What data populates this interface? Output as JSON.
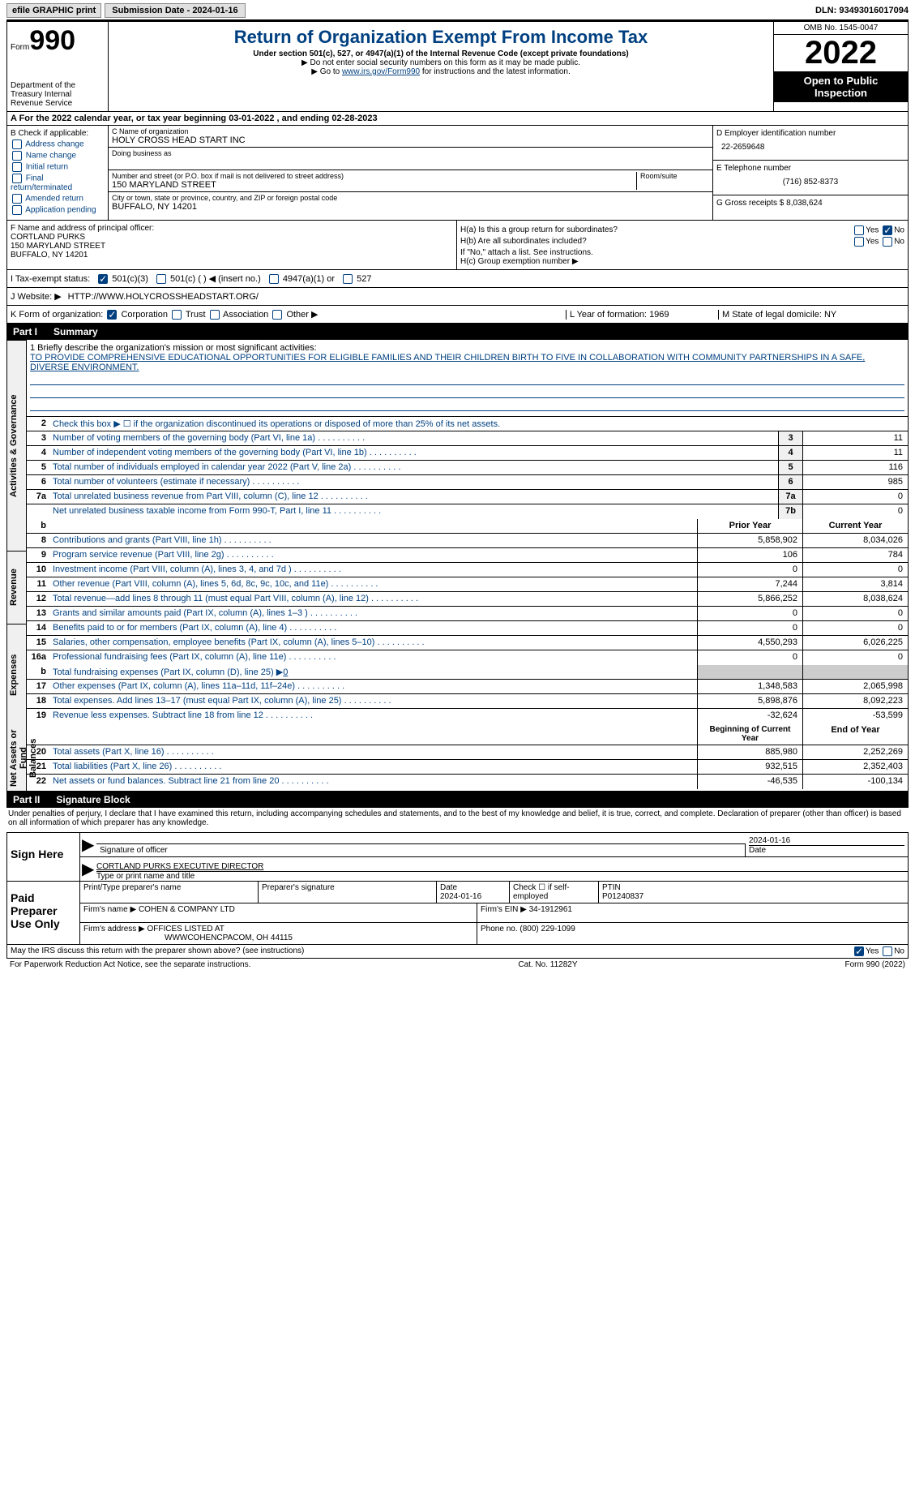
{
  "topbar": {
    "efile_label": "efile GRAPHIC print",
    "submission_label": "Submission Date - 2024-01-16",
    "dln": "DLN: 93493016017094"
  },
  "header": {
    "form_prefix": "Form",
    "form_number": "990",
    "dept": "Department of the Treasury Internal Revenue Service",
    "title": "Return of Organization Exempt From Income Tax",
    "subtitle": "Under section 501(c), 527, or 4947(a)(1) of the Internal Revenue Code (except private foundations)",
    "note1": "▶ Do not enter social security numbers on this form as it may be made public.",
    "note2_pre": "▶ Go to ",
    "note2_link": "www.irs.gov/Form990",
    "note2_post": " for instructions and the latest information.",
    "omb": "OMB No. 1545-0047",
    "year": "2022",
    "public_inspect": "Open to Public Inspection"
  },
  "row_a": {
    "text": "A For the 2022 calendar year, or tax year beginning 03-01-2022   , and ending 02-28-2023"
  },
  "col_b": {
    "label": "B Check if applicable:",
    "items": [
      "Address change",
      "Name change",
      "Initial return",
      "Final return/terminated",
      "Amended return",
      "Application pending"
    ]
  },
  "col_c": {
    "name_lbl": "C Name of organization",
    "name": "HOLY CROSS HEAD START INC",
    "dba_lbl": "Doing business as",
    "dba": "",
    "addr_lbl": "Number and street (or P.O. box if mail is not delivered to street address)",
    "addr": "150 MARYLAND STREET",
    "room_lbl": "Room/suite",
    "city_lbl": "City or town, state or province, country, and ZIP or foreign postal code",
    "city": "BUFFALO, NY  14201"
  },
  "col_d": {
    "ein_lbl": "D Employer identification number",
    "ein": "22-2659648",
    "phone_lbl": "E Telephone number",
    "phone": "(716) 852-8373",
    "gross_lbl": "G Gross receipts $",
    "gross": "8,038,624"
  },
  "fgh": {
    "f_lbl": "F Name and address of principal officer:",
    "f_name": "CORTLAND PURKS",
    "f_addr1": "150 MARYLAND STREET",
    "f_addr2": "BUFFALO, NY  14201",
    "ha_lbl": "H(a)  Is this a group return for subordinates?",
    "hb_lbl": "H(b)  Are all subordinates included?",
    "hb_note": "If \"No,\" attach a list. See instructions.",
    "hc_lbl": "H(c)  Group exemption number ▶",
    "yes": "Yes",
    "no": "No"
  },
  "status": {
    "i_lbl": "I    Tax-exempt status:",
    "opt1": "501(c)(3)",
    "opt2": "501(c) (  ) ◀ (insert no.)",
    "opt3": "4947(a)(1) or",
    "opt4": "527"
  },
  "web": {
    "j_lbl": "J   Website: ▶",
    "url": "HTTP://WWW.HOLYCROSSHEADSTART.ORG/"
  },
  "k_row": {
    "k_lbl": "K Form of organization:",
    "opts": [
      "Corporation",
      "Trust",
      "Association",
      "Other ▶"
    ],
    "l_lbl": "L Year of formation:",
    "l_val": "1969",
    "m_lbl": "M State of legal domicile:",
    "m_val": "NY"
  },
  "parts": {
    "p1": "Part I",
    "p1_title": "Summary",
    "p2": "Part II",
    "p2_title": "Signature Block"
  },
  "vtabs": [
    "Activities & Governance",
    "Revenue",
    "Expenses",
    "Net Assets or Fund Balances"
  ],
  "summary": {
    "l1_lbl": "1   Briefly describe the organization's mission or most significant activities:",
    "l1_txt": "TO PROVIDE COMPREHENSIVE EDUCATIONAL OPPORTUNITIES FOR ELIGIBLE FAMILIES AND THEIR CHILDREN BIRTH TO FIVE IN COLLABORATION WITH COMMUNITY PARTNERSHIPS IN A SAFE, DIVERSE ENVIRONMENT.",
    "l2_lbl": "Check this box ▶ ☐ if the organization discontinued its operations or disposed of more than 25% of its net assets.",
    "lines_single": [
      {
        "n": "3",
        "t": "Number of voting members of the governing body (Part VI, line 1a)",
        "b": "3",
        "v": "11"
      },
      {
        "n": "4",
        "t": "Number of independent voting members of the governing body (Part VI, line 1b)",
        "b": "4",
        "v": "11"
      },
      {
        "n": "5",
        "t": "Total number of individuals employed in calendar year 2022 (Part V, line 2a)",
        "b": "5",
        "v": "116"
      },
      {
        "n": "6",
        "t": "Total number of volunteers (estimate if necessary)",
        "b": "6",
        "v": "985"
      },
      {
        "n": "7a",
        "t": "Total unrelated business revenue from Part VIII, column (C), line 12",
        "b": "7a",
        "v": "0"
      },
      {
        "n": "",
        "t": "Net unrelated business taxable income from Form 990-T, Part I, line 11",
        "b": "7b",
        "v": "0"
      }
    ],
    "col_hdr_b": "b",
    "prior_hdr": "Prior Year",
    "current_hdr": "Current Year",
    "lines_double": [
      {
        "n": "8",
        "t": "Contributions and grants (Part VIII, line 1h)",
        "p": "5,858,902",
        "c": "8,034,026"
      },
      {
        "n": "9",
        "t": "Program service revenue (Part VIII, line 2g)",
        "p": "106",
        "c": "784"
      },
      {
        "n": "10",
        "t": "Investment income (Part VIII, column (A), lines 3, 4, and 7d )",
        "p": "0",
        "c": "0"
      },
      {
        "n": "11",
        "t": "Other revenue (Part VIII, column (A), lines 5, 6d, 8c, 9c, 10c, and 11e)",
        "p": "7,244",
        "c": "3,814"
      },
      {
        "n": "12",
        "t": "Total revenue—add lines 8 through 11 (must equal Part VIII, column (A), line 12)",
        "p": "5,866,252",
        "c": "8,038,624"
      },
      {
        "n": "13",
        "t": "Grants and similar amounts paid (Part IX, column (A), lines 1–3 )",
        "p": "0",
        "c": "0"
      },
      {
        "n": "14",
        "t": "Benefits paid to or for members (Part IX, column (A), line 4)",
        "p": "0",
        "c": "0"
      },
      {
        "n": "15",
        "t": "Salaries, other compensation, employee benefits (Part IX, column (A), lines 5–10)",
        "p": "4,550,293",
        "c": "6,026,225"
      },
      {
        "n": "16a",
        "t": "Professional fundraising fees (Part IX, column (A), line 11e)",
        "p": "0",
        "c": "0"
      }
    ],
    "l16b_n": "b",
    "l16b_t": "Total fundraising expenses (Part IX, column (D), line 25) ▶",
    "l16b_v": "0",
    "lines_double2": [
      {
        "n": "17",
        "t": "Other expenses (Part IX, column (A), lines 11a–11d, 11f–24e)",
        "p": "1,348,583",
        "c": "2,065,998"
      },
      {
        "n": "18",
        "t": "Total expenses. Add lines 13–17 (must equal Part IX, column (A), line 25)",
        "p": "5,898,876",
        "c": "8,092,223"
      },
      {
        "n": "19",
        "t": "Revenue less expenses. Subtract line 18 from line 12",
        "p": "-32,624",
        "c": "-53,599"
      }
    ],
    "begin_hdr": "Beginning of Current Year",
    "end_hdr": "End of Year",
    "lines_double3": [
      {
        "n": "20",
        "t": "Total assets (Part X, line 16)",
        "p": "885,980",
        "c": "2,252,269"
      },
      {
        "n": "21",
        "t": "Total liabilities (Part X, line 26)",
        "p": "932,515",
        "c": "2,352,403"
      },
      {
        "n": "22",
        "t": "Net assets or fund balances. Subtract line 21 from line 20",
        "p": "-46,535",
        "c": "-100,134"
      }
    ]
  },
  "penalty": "Under penalties of perjury, I declare that I have examined this return, including accompanying schedules and statements, and to the best of my knowledge and belief, it is true, correct, and complete. Declaration of preparer (other than officer) is based on all information of which preparer has any knowledge.",
  "sign": {
    "lbl": "Sign Here",
    "sig_officer": "Signature of officer",
    "date": "Date",
    "date_val": "2024-01-16",
    "name_title": "CORTLAND PURKS  EXECUTIVE DIRECTOR",
    "type_print": "Type or print name and title"
  },
  "preparer": {
    "lbl": "Paid Preparer Use Only",
    "print_name": "Print/Type preparer's name",
    "sig": "Preparer's signature",
    "date_lbl": "Date",
    "date": "2024-01-16",
    "check_lbl": "Check ☐ if self-employed",
    "ptin_lbl": "PTIN",
    "ptin": "P01240837",
    "firm_name_lbl": "Firm's name    ▶",
    "firm_name": "COHEN & COMPANY LTD",
    "firm_ein_lbl": "Firm's EIN ▶",
    "firm_ein": "34-1912961",
    "firm_addr_lbl": "Firm's address ▶",
    "firm_addr1": "OFFICES LISTED AT",
    "firm_addr2": "WWWCOHENCPACOM, OH  44115",
    "phone_lbl": "Phone no.",
    "phone": "(800) 229-1099"
  },
  "may": {
    "txt": "May the IRS discuss this return with the preparer shown above? (see instructions)",
    "yes": "Yes",
    "no": "No"
  },
  "footer": {
    "left": "For Paperwork Reduction Act Notice, see the separate instructions.",
    "mid": "Cat. No. 11282Y",
    "right": "Form 990 (2022)"
  },
  "colors": {
    "blue": "#004080",
    "black": "#000000",
    "shade": "#cccccc"
  }
}
